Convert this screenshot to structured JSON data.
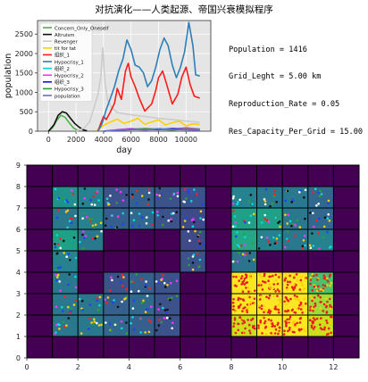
{
  "title": "对抗演化——人类起源、帝国兴衰模拟程序",
  "stats": [
    "Population = 1416",
    "Grid_Leght = 5.00 km",
    "Reproduction_Rate = 0.05",
    "Res_Capacity_Per_Grid = 15.00"
  ],
  "chart_data": [
    {
      "type": "line",
      "xlabel": "day",
      "ylabel": "population",
      "xlim": [
        -800,
        11800
      ],
      "ylim": [
        0,
        2850
      ],
      "xticks": [
        0,
        2000,
        4000,
        6000,
        8000,
        10000
      ],
      "yticks": [
        0,
        500,
        1000,
        1500,
        2000,
        2500
      ],
      "background": "#e5e5e5",
      "grid": true,
      "legend_position": "upper-left",
      "series": [
        {
          "name": "Concern_Only_Oneself",
          "color": "#4daf4a",
          "x": [
            0,
            300,
            600,
            900,
            1200,
            1500,
            1800,
            2100
          ],
          "values": [
            0,
            90,
            280,
            410,
            360,
            220,
            90,
            20
          ]
        },
        {
          "name": "Altruism",
          "color": "#111111",
          "x": [
            0,
            400,
            700,
            1000,
            1300,
            1600,
            1900,
            2200,
            2500,
            2800
          ],
          "values": [
            0,
            170,
            410,
            500,
            470,
            330,
            200,
            110,
            40,
            10
          ]
        },
        {
          "name": "Revenger",
          "color": "#cccccc",
          "x": [
            2000,
            2600,
            3000,
            3300,
            3600,
            3800,
            3950,
            4100,
            4300,
            4600,
            5000,
            6000,
            7000,
            8000,
            9000,
            10000,
            11000
          ],
          "values": [
            0,
            80,
            250,
            600,
            950,
            1400,
            2150,
            1300,
            800,
            600,
            480,
            420,
            380,
            330,
            300,
            260,
            230
          ]
        },
        {
          "name": "tit for tat",
          "color": "#ffd000",
          "x": [
            3500,
            4000,
            4500,
            5000,
            5500,
            6000,
            6500,
            7000,
            7500,
            8000,
            8500,
            9000,
            9500,
            10000,
            10500,
            11000
          ],
          "values": [
            20,
            150,
            240,
            310,
            200,
            260,
            330,
            180,
            240,
            290,
            160,
            220,
            260,
            140,
            190,
            170
          ]
        },
        {
          "name": "组织_1",
          "color": "#ff1a1a",
          "x": [
            3600,
            3800,
            4000,
            4200,
            4500,
            4800,
            5000,
            5300,
            5600,
            5800,
            6000,
            6300,
            6600,
            7000,
            7500,
            7800,
            8000,
            8300,
            8600,
            9000,
            9400,
            9700,
            10000,
            10300,
            10600,
            11000
          ],
          "values": [
            0,
            200,
            380,
            300,
            500,
            720,
            1100,
            820,
            1550,
            1750,
            1400,
            1150,
            850,
            520,
            700,
            1050,
            1380,
            1550,
            1200,
            700,
            950,
            1400,
            1650,
            1200,
            900,
            850
          ]
        },
        {
          "name": "Hypocrisy_1",
          "color": "#2c7fb8",
          "x": [
            3600,
            3900,
            4200,
            4500,
            4800,
            5100,
            5400,
            5700,
            6000,
            6300,
            6600,
            6900,
            7200,
            7500,
            7800,
            8100,
            8400,
            8700,
            9000,
            9300,
            9600,
            9900,
            10200,
            10500,
            10700,
            11000
          ],
          "values": [
            0,
            200,
            560,
            850,
            1150,
            1550,
            1850,
            2350,
            2100,
            1700,
            1650,
            1500,
            1150,
            1300,
            1650,
            2100,
            2400,
            2200,
            1700,
            1380,
            1650,
            2050,
            2800,
            2200,
            1450,
            1420
          ]
        },
        {
          "name": "组织_2",
          "color": "#00d7d7",
          "x": [
            4000,
            5000,
            6000,
            7000,
            8000,
            9000,
            10000,
            11000
          ],
          "values": [
            0,
            30,
            60,
            40,
            70,
            50,
            80,
            60
          ]
        },
        {
          "name": "Hypocrisy_2",
          "color": "#ff33ff",
          "x": [
            4000,
            5000,
            6000,
            7000,
            8000,
            9000,
            10000,
            11000
          ],
          "values": [
            0,
            40,
            70,
            30,
            60,
            40,
            90,
            50
          ]
        },
        {
          "name": "组织_3",
          "color": "#1515cc",
          "x": [
            4000,
            5000,
            6000,
            7000,
            8000,
            9000,
            10000,
            11000
          ],
          "values": [
            0,
            20,
            50,
            60,
            40,
            70,
            50,
            30
          ]
        },
        {
          "name": "Hypocrisy_3",
          "color": "#30a030",
          "x": [
            4000,
            5000,
            6000,
            7000,
            8000,
            9000,
            10000,
            11000
          ],
          "values": [
            0,
            30,
            40,
            70,
            50,
            30,
            60,
            40
          ]
        },
        {
          "name": "population",
          "color": "#6d6dd5",
          "x": [
            4000,
            5000,
            6000,
            7000,
            8000,
            9000,
            10000,
            11000
          ],
          "values": [
            0,
            25,
            45,
            35,
            55,
            45,
            35,
            25
          ]
        }
      ]
    },
    {
      "type": "heatmap",
      "xlim": [
        0,
        13
      ],
      "ylim": [
        0,
        9
      ],
      "xticks": [
        0,
        2,
        4,
        6,
        8,
        10,
        12
      ],
      "yticks": [
        0,
        1,
        2,
        3,
        4,
        5,
        6,
        7,
        8,
        9
      ],
      "cells": [
        {
          "row": 0,
          "values": [
            "#440154",
            "#440154",
            "#440154",
            "#440154",
            "#440154",
            "#440154",
            "#440154",
            "#440154",
            "#440154",
            "#440154",
            "#440154",
            "#440154",
            "#440154"
          ]
        },
        {
          "row": 1,
          "values": [
            "#440154",
            "#2a788e",
            "#2a788e",
            "#31688e",
            "#35608d",
            "#3b528b",
            "#440154",
            "#440154",
            "#c8e020",
            "#fde725",
            "#fde725",
            "#c8e020",
            "#440154"
          ]
        },
        {
          "row": 2,
          "values": [
            "#440154",
            "#2a788e",
            "#2a788e",
            "#35608d",
            "#31688e",
            "#3b528b",
            "#440154",
            "#440154",
            "#fde725",
            "#fde725",
            "#fde725",
            "#a0da39",
            "#440154"
          ]
        },
        {
          "row": 3,
          "values": [
            "#440154",
            "#2a788e",
            "#440154",
            "#3b528b",
            "#35608d",
            "#3b528b",
            "#440154",
            "#440154",
            "#fde725",
            "#fde725",
            "#fde725",
            "#4ac16d",
            "#440154"
          ]
        },
        {
          "row": 4,
          "values": [
            "#440154",
            "#26828e",
            "#440154",
            "#440154",
            "#440154",
            "#440154",
            "#3b528b",
            "#440154",
            "#2c738e",
            "#440154",
            "#440154",
            "#440154",
            "#440154"
          ]
        },
        {
          "row": 5,
          "values": [
            "#440154",
            "#1fa187",
            "#2a788e",
            "#440154",
            "#440154",
            "#440154",
            "#3e4a89",
            "#440154",
            "#22a884",
            "#26828e",
            "#2a788e",
            "#26828e",
            "#440154"
          ]
        },
        {
          "row": 6,
          "values": [
            "#440154",
            "#2a788e",
            "#26828e",
            "#35608d",
            "#31688e",
            "#3b528b",
            "#3e4a89",
            "#440154",
            "#1fa187",
            "#1fa187",
            "#2a788e",
            "#31688e",
            "#440154"
          ]
        },
        {
          "row": 7,
          "values": [
            "#440154",
            "#21918c",
            "#26828e",
            "#3b528b",
            "#35608d",
            "#3b528b",
            "#3b528b",
            "#440154",
            "#26828e",
            "#2a788e",
            "#2a788e",
            "#31688e",
            "#440154"
          ]
        },
        {
          "row": 8,
          "values": [
            "#440154",
            "#440154",
            "#440154",
            "#440154",
            "#440154",
            "#440154",
            "#440154",
            "#440154",
            "#440154",
            "#440154",
            "#440154",
            "#440154",
            "#440154"
          ]
        }
      ]
    }
  ]
}
